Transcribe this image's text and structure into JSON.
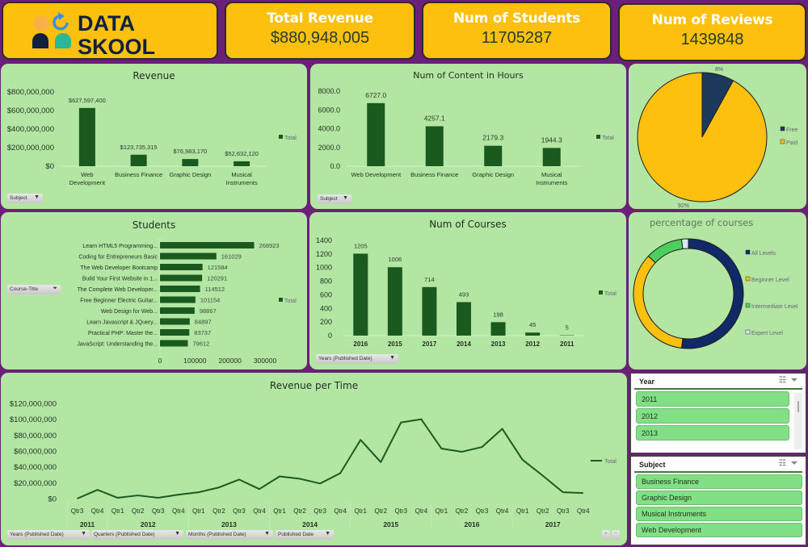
{
  "logo": {
    "line1": "DATA",
    "line2": "SKOOL"
  },
  "kpis": [
    {
      "title": "Total Revenue",
      "value": "$880,948,005"
    },
    {
      "title": "Num of  Students",
      "value": "11705287"
    },
    {
      "title": "Num of  Reviews",
      "value": "1439848"
    }
  ],
  "filters": {
    "subject": "Subject",
    "course_title": "Course-Title",
    "years": "Years (Published Date)",
    "quarters": "Quarters (Published Date)",
    "months": "Months (Published Date)",
    "published": "Published Date"
  },
  "slicers": {
    "year": {
      "title": "Year",
      "items": [
        "2011",
        "2012",
        "2013"
      ]
    },
    "subject": {
      "title": "Subject",
      "items": [
        "Business Finance",
        "Graphic Design",
        "Musical Instruments",
        "Web Development"
      ]
    }
  },
  "zoom_controls": {
    "plus": "+",
    "minus": "−"
  },
  "colors": {
    "bar": "#1a5a1f",
    "free": "#1b3a5c",
    "paid": "#fdc00f",
    "all_levels": "#0f2a66",
    "beginner": "#fdc00f",
    "intermediate": "#4ccf5c",
    "expert": "#dbe8f2",
    "panel": "#b3e6a3",
    "background": "#6a1f78"
  },
  "chart_data": [
    {
      "id": "revenue",
      "type": "bar",
      "title": "Revenue",
      "categories": [
        "Web Development",
        "Business Finance",
        "Graphic Design",
        "Musical Instruments"
      ],
      "category_lines": [
        [
          "Web",
          "Development"
        ],
        [
          "Business Finance"
        ],
        [
          "Graphic Design"
        ],
        [
          "Musical",
          "Instruments"
        ]
      ],
      "values": [
        627597400,
        123735315,
        76983170,
        52632120
      ],
      "data_labels": [
        "$627,597,400",
        "$123,735,315",
        "$76,983,170",
        "$52,632,120"
      ],
      "ylim": [
        0,
        800000000
      ],
      "yticks": [
        "$0",
        "$200,000,000",
        "$400,000,000",
        "$600,000,000",
        "$800,000,000"
      ],
      "legend": "Total",
      "legend_position": "right"
    },
    {
      "id": "content_hours",
      "type": "bar",
      "title": "Num of  Content in Hours",
      "categories": [
        "Web Development",
        "Business Finance",
        "Graphic Design",
        "Musical Instruments"
      ],
      "category_lines": [
        [
          "Web Development"
        ],
        [
          "Business Finance"
        ],
        [
          "Graphic Design"
        ],
        [
          "Musical",
          "Instruments"
        ]
      ],
      "values": [
        6727.0,
        4257.1,
        2179.3,
        1944.3
      ],
      "data_labels": [
        "6727.0",
        "4257.1",
        "2179.3",
        "1944.3"
      ],
      "ylim": [
        0,
        8000
      ],
      "yticks": [
        "0.0",
        "2000.0",
        "4000.0",
        "6000.0",
        "8000.0"
      ],
      "legend": "Total",
      "legend_position": "right"
    },
    {
      "id": "free_paid",
      "type": "pie",
      "labels": [
        "Free",
        "Paid"
      ],
      "values": [
        8,
        92
      ],
      "data_labels": [
        "8%",
        "92%"
      ],
      "legend_position": "right"
    },
    {
      "id": "students",
      "type": "bar",
      "orientation": "horizontal",
      "title": "Students",
      "categories": [
        "Learn HTML5 Programming...",
        "Coding for Entrepreneurs Basic",
        "The Web Developer Bootcamp",
        "Build Your First Website in 1...",
        "The Complete Web Developer...",
        "Free Beginner Electric Guitar...",
        "Web Design for Web...",
        "Learn Javascript & JQuery...",
        "Practical PHP: Master the...",
        "JavaScript: Understanding the..."
      ],
      "values": [
        268923,
        161029,
        121584,
        120291,
        114512,
        101154,
        98867,
        84897,
        83737,
        79612
      ],
      "xlim": [
        0,
        300000
      ],
      "xticks": [
        "0",
        "100000",
        "200000",
        "300000"
      ],
      "legend": "Total",
      "legend_position": "right"
    },
    {
      "id": "courses",
      "type": "bar",
      "title": "Num of  Courses",
      "categories": [
        "2016",
        "2015",
        "2017",
        "2014",
        "2013",
        "2012",
        "2011"
      ],
      "values": [
        1205,
        1006,
        714,
        493,
        198,
        45,
        5
      ],
      "ylim": [
        0,
        1400
      ],
      "yticks": [
        "0",
        "200",
        "400",
        "600",
        "800",
        "1000",
        "1200",
        "1400"
      ],
      "legend": "Total",
      "legend_position": "right"
    },
    {
      "id": "levels",
      "type": "pie",
      "subtype": "donut",
      "title": "percentage of courses",
      "labels": [
        "All Levels",
        "Beginner Level",
        "Intermediate Level",
        "Expert Level"
      ],
      "values": [
        52,
        35,
        11,
        2
      ],
      "legend_position": "right"
    },
    {
      "id": "revenue_time",
      "type": "line",
      "title": "Revenue per Time",
      "x_quarters": [
        "Qtr3",
        "Qtr4",
        "Qtr1",
        "Qtr2",
        "Qtr3",
        "Qtr4",
        "Qtr1",
        "Qtr2",
        "Qtr3",
        "Qtr4",
        "Qtr1",
        "Qtr2",
        "Qtr3",
        "Qtr4",
        "Qtr1",
        "Qtr2",
        "Qtr3",
        "Qtr4",
        "Qtr1",
        "Qtr2",
        "Qtr3",
        "Qtr4",
        "Qtr1",
        "Qtr2",
        "Qtr3",
        "Qtr4"
      ],
      "x_years": [
        {
          "label": "2011",
          "span": 2
        },
        {
          "label": "2012",
          "span": 4
        },
        {
          "label": "2013",
          "span": 4
        },
        {
          "label": "2014",
          "span": 4
        },
        {
          "label": "2015",
          "span": 4
        },
        {
          "label": "2016",
          "span": 4
        },
        {
          "label": "2017",
          "span": 4
        }
      ],
      "values": [
        0,
        11000000,
        1000000,
        4000000,
        1000000,
        5000000,
        8000000,
        14000000,
        24000000,
        12000000,
        28000000,
        25000000,
        19000000,
        32000000,
        74000000,
        46000000,
        96000000,
        100000000,
        63000000,
        59000000,
        65000000,
        88000000,
        49000000,
        29000000,
        8000000,
        7000000
      ],
      "ylim": [
        0,
        120000000
      ],
      "yticks": [
        "$0",
        "$20,000,000",
        "$40,000,000",
        "$60,000,000",
        "$80,000,000",
        "$100,000,000",
        "$120,000,000"
      ],
      "legend": "Total",
      "legend_position": "right"
    }
  ]
}
